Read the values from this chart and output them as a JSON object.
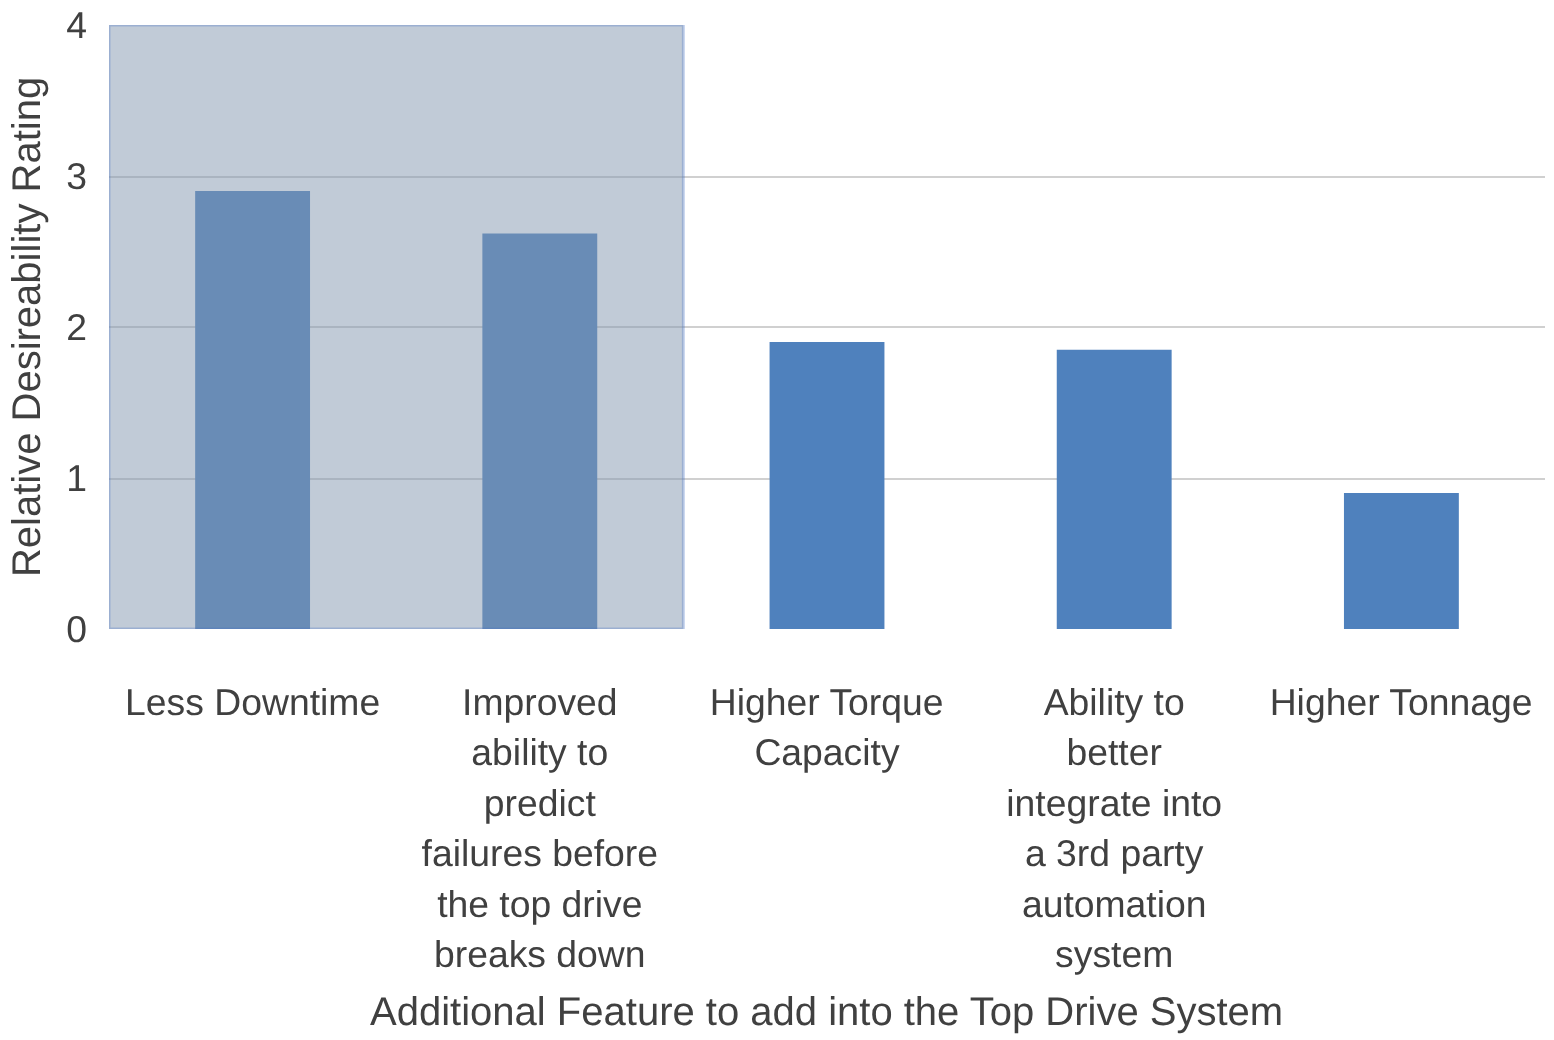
{
  "chart_data": {
    "type": "bar",
    "xlabel": "Additional Feature to add into the Top Drive System",
    "ylabel": "Relative Desireability Rating",
    "categories": [
      "Less Downtime",
      "Improved ability to predict failures before the top drive breaks down",
      "Higher Torque Capacity",
      "Ability to better integrate into a 3rd party automation system",
      "Higher Tonnage"
    ],
    "values": [
      2.9,
      2.62,
      1.9,
      1.85,
      0.9
    ],
    "color": "#4f81bd",
    "ylim": [
      0,
      4
    ],
    "yticks": [
      0,
      1,
      2,
      3,
      4
    ],
    "grid": "y",
    "bands": [
      {
        "axis": "x",
        "from": "Less Downtime",
        "to": "Improved ability to predict failures before the top drive breaks down",
        "color": "#8497b0"
      }
    ]
  }
}
